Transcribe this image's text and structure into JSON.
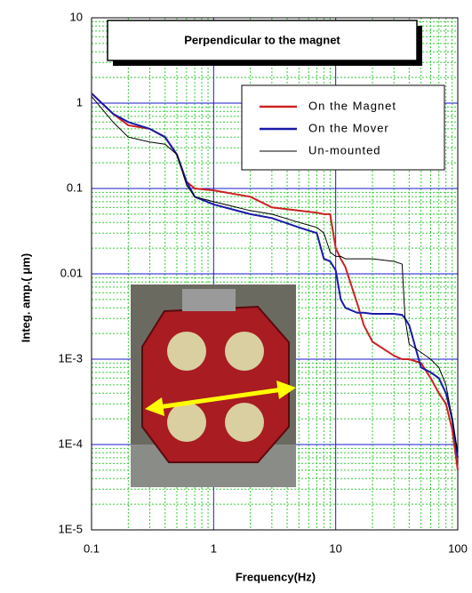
{
  "chart_data": {
    "type": "line",
    "title": "Perpendicular to the magnet",
    "xlabel": "Frequency(Hz)",
    "ylabel": "Integ. amp.( μm)",
    "xscale": "log",
    "yscale": "log",
    "xlim": [
      0.1,
      100
    ],
    "ylim": [
      1e-05,
      10
    ],
    "xticks": [
      0.1,
      1,
      10,
      100
    ],
    "yticks": [
      10,
      1,
      0.1,
      0.01,
      {
        "value": 0.001,
        "label": "1E-3"
      },
      {
        "value": 0.0001,
        "label": "1E-4"
      },
      {
        "value": 1e-05,
        "label": "1E-5"
      }
    ],
    "grid": true,
    "minor_grid": true,
    "legend": "upper right",
    "x": [
      0.1,
      0.15,
      0.2,
      0.3,
      0.4,
      0.5,
      0.6,
      0.7,
      1,
      2,
      3,
      5,
      7,
      8,
      9,
      10,
      11,
      12,
      15,
      17,
      20,
      30,
      35,
      37,
      40,
      50,
      60,
      70,
      80,
      90,
      100
    ],
    "series": [
      {
        "name": "On the Magnet",
        "color": "#cc2222",
        "values": [
          1.3,
          0.75,
          0.55,
          0.5,
          0.4,
          0.25,
          0.12,
          0.1,
          0.095,
          0.08,
          0.06,
          0.055,
          0.052,
          0.05,
          0.05,
          0.02,
          0.015,
          0.012,
          0.0045,
          0.0025,
          0.0016,
          0.0011,
          0.001,
          0.001,
          0.001,
          0.0009,
          0.0006,
          0.0004,
          0.0003,
          0.00015,
          5e-05
        ]
      },
      {
        "name": "On the Mover",
        "color": "#1a1aa8",
        "values": [
          1.3,
          0.75,
          0.6,
          0.5,
          0.4,
          0.25,
          0.12,
          0.08,
          0.065,
          0.05,
          0.045,
          0.035,
          0.03,
          0.015,
          0.014,
          0.011,
          0.005,
          0.004,
          0.0035,
          0.0035,
          0.0034,
          0.0034,
          0.0033,
          0.003,
          0.0025,
          0.0008,
          0.0007,
          0.0006,
          0.0004,
          0.0002,
          7e-05
        ]
      },
      {
        "name": "Un-mounted",
        "color": "#000000",
        "values": [
          1.2,
          0.6,
          0.4,
          0.35,
          0.33,
          0.25,
          0.11,
          0.08,
          0.07,
          0.055,
          0.05,
          0.04,
          0.035,
          0.03,
          0.018,
          0.016,
          0.016,
          0.015,
          0.015,
          0.015,
          0.015,
          0.014,
          0.013,
          0.003,
          0.0015,
          0.0012,
          0.001,
          0.0008,
          0.0005,
          0.0002,
          8e-05
        ]
      }
    ]
  }
}
